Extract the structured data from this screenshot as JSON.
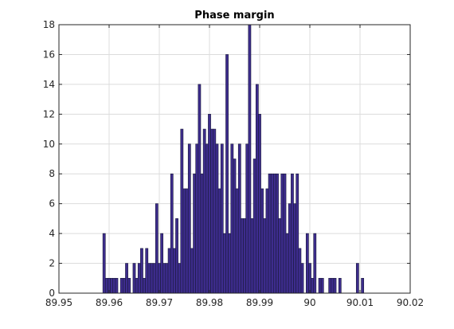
{
  "chart_data": {
    "type": "bar",
    "title": "Phase margin",
    "xlabel": "",
    "ylabel": "",
    "xlim": [
      89.95,
      90.02
    ],
    "ylim": [
      0,
      18
    ],
    "xticks": [
      89.95,
      89.96,
      89.97,
      89.98,
      89.99,
      90,
      90.01,
      90.02
    ],
    "xtick_labels": [
      "89.95",
      "89.96",
      "89.97",
      "89.98",
      "89.99",
      "90",
      "90.01",
      "90.02"
    ],
    "yticks": [
      0,
      2,
      4,
      6,
      8,
      10,
      12,
      14,
      16,
      18
    ],
    "ytick_labels": [
      "0",
      "2",
      "4",
      "6",
      "8",
      "10",
      "12",
      "14",
      "16",
      "18"
    ],
    "grid": true,
    "bin_width": 0.0005,
    "x": [
      89.959,
      89.9595,
      89.96,
      89.9605,
      89.961,
      89.9615,
      89.962,
      89.9625,
      89.963,
      89.9635,
      89.964,
      89.9645,
      89.965,
      89.9655,
      89.966,
      89.9665,
      89.967,
      89.9675,
      89.968,
      89.9685,
      89.969,
      89.9695,
      89.97,
      89.9705,
      89.971,
      89.9715,
      89.972,
      89.9725,
      89.973,
      89.9735,
      89.974,
      89.9745,
      89.975,
      89.9755,
      89.976,
      89.9765,
      89.977,
      89.9775,
      89.978,
      89.9785,
      89.979,
      89.9795,
      89.98,
      89.9805,
      89.981,
      89.9815,
      89.982,
      89.9825,
      89.983,
      89.9835,
      89.984,
      89.9845,
      89.985,
      89.9855,
      89.986,
      89.9865,
      89.987,
      89.9875,
      89.988,
      89.9885,
      89.989,
      89.9895,
      89.99,
      89.9905,
      89.991,
      89.9915,
      89.992,
      89.9925,
      89.993,
      89.9935,
      89.994,
      89.9945,
      89.995,
      89.9955,
      89.996,
      89.9965,
      89.997,
      89.9975,
      89.998,
      89.9985,
      89.999,
      89.9995,
      90,
      90.0005,
      90.001,
      90.0015,
      90.002,
      90.0025,
      90.003,
      90.0035,
      90.004,
      90.0045,
      90.005,
      90.0055,
      90.006,
      90.0065,
      90.007,
      90.0075,
      90.008,
      90.0085,
      90.009,
      90.0095,
      90.01,
      90.0105
    ],
    "values": [
      4,
      1,
      1,
      1,
      1,
      1,
      0,
      1,
      1,
      2,
      1,
      0,
      2,
      1,
      2,
      3,
      1,
      3,
      2,
      2,
      2,
      6,
      2,
      4,
      2,
      2,
      3,
      8,
      3,
      5,
      2,
      11,
      7,
      7,
      10,
      3,
      8,
      10,
      14,
      8,
      11,
      10,
      12,
      11,
      11,
      10,
      7,
      10,
      4,
      16,
      4,
      10,
      9,
      7,
      10,
      5,
      5,
      10,
      18,
      5,
      9,
      14,
      12,
      7,
      5,
      7,
      8,
      8,
      8,
      8,
      5,
      8,
      8,
      4,
      6,
      8,
      6,
      8,
      3,
      2,
      0,
      4,
      2,
      1,
      4,
      0,
      1,
      1,
      0,
      0,
      1,
      1,
      1,
      0,
      1,
      0,
      0,
      0,
      0,
      0,
      0,
      2,
      0,
      1
    ]
  }
}
